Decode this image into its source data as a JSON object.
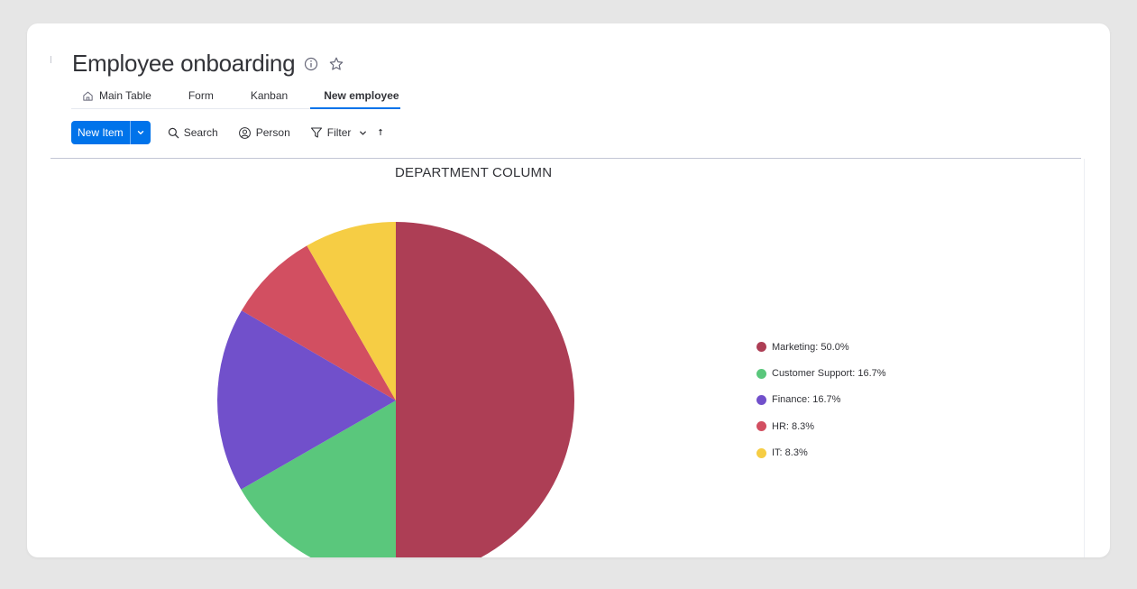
{
  "board": {
    "title": "Employee onboarding",
    "icons": {
      "info": "info-icon",
      "favorite": "star-icon"
    }
  },
  "tabs": [
    {
      "label": "Main Table",
      "icon": "home-icon",
      "active": false
    },
    {
      "label": "Form",
      "active": false
    },
    {
      "label": "Kanban",
      "active": false
    },
    {
      "label": "New employee",
      "active": true
    }
  ],
  "toolbar": {
    "new_item_label": "New Item",
    "new_item_dropdown_icon": "chevron-down-icon",
    "search_label": "Search",
    "person_label": "Person",
    "filter_label": "Filter"
  },
  "colors": {
    "accent": "#0073ea",
    "marketing": "#ad3e55",
    "customer_support": "#5ac77c",
    "finance": "#7150cb",
    "hr": "#d24f61",
    "it": "#f6cd44"
  },
  "chart_data": {
    "type": "pie",
    "title": "DEPARTMENT COLUMN",
    "slices": [
      {
        "name": "Marketing",
        "value": 50.0,
        "legend": "Marketing: 50.0%",
        "color": "#ad3e55"
      },
      {
        "name": "Customer Support",
        "value": 16.7,
        "legend": "Customer Support: 16.7%",
        "color": "#5ac77c"
      },
      {
        "name": "Finance",
        "value": 16.7,
        "legend": "Finance: 16.7%",
        "color": "#7150cb"
      },
      {
        "name": "HR",
        "value": 8.3,
        "legend": "HR: 8.3%",
        "color": "#d24f61"
      },
      {
        "name": "IT",
        "value": 8.3,
        "legend": "IT: 8.3%",
        "color": "#f6cd44"
      }
    ],
    "legend_position": "right"
  }
}
